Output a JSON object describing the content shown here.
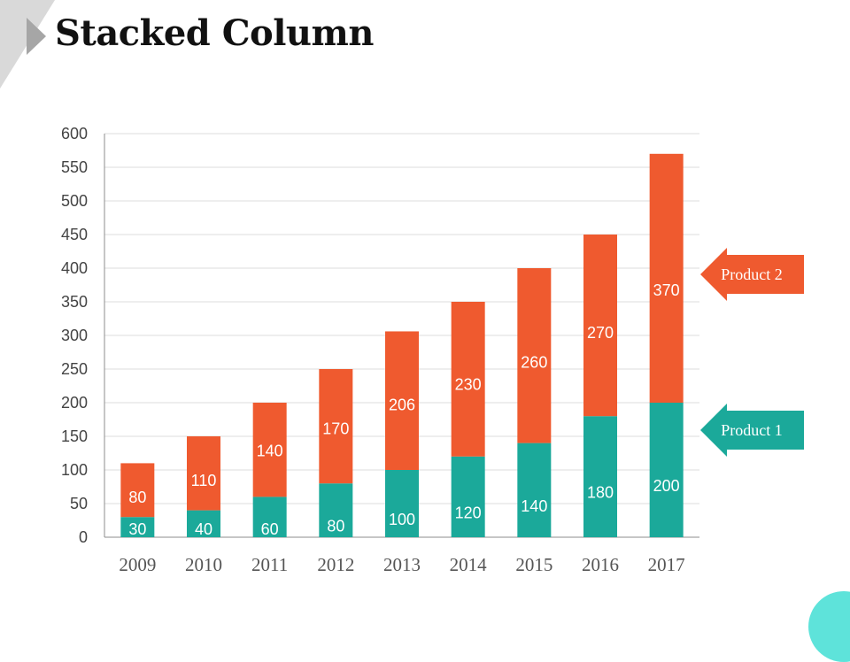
{
  "slide": {
    "title": "Stacked Column"
  },
  "colors": {
    "product1": "#1ba99a",
    "product2": "#ef5a2f",
    "accent": "#5ee3da"
  },
  "chart_data": {
    "type": "bar",
    "stacked": true,
    "title": "Stacked Column",
    "xlabel": "",
    "ylabel": "",
    "categories": [
      "2009",
      "2010",
      "2011",
      "2012",
      "2013",
      "2014",
      "2015",
      "2016",
      "2017"
    ],
    "series": [
      {
        "name": "Product 1",
        "values": [
          30,
          40,
          60,
          80,
          100,
          120,
          140,
          180,
          200
        ]
      },
      {
        "name": "Product 2",
        "values": [
          80,
          110,
          140,
          170,
          206,
          230,
          260,
          270,
          370
        ]
      }
    ],
    "ylim": [
      0,
      600
    ],
    "yticks": [
      0,
      50,
      100,
      150,
      200,
      250,
      300,
      350,
      400,
      450,
      500,
      550,
      600
    ],
    "grid": true,
    "legend": [
      {
        "label": "Product 2",
        "series": "Product 2"
      },
      {
        "label": "Product 1",
        "series": "Product 1"
      }
    ],
    "legend_position": "right"
  }
}
